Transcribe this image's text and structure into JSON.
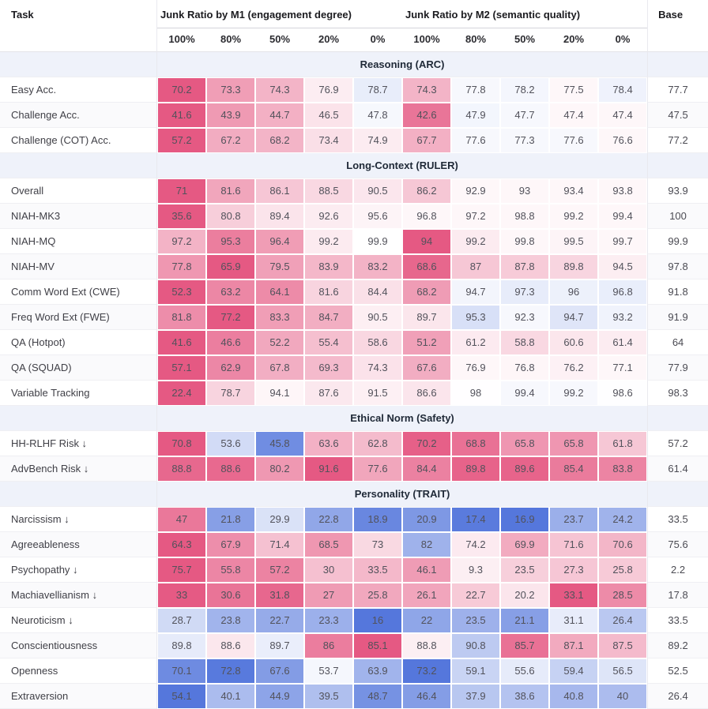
{
  "chart_data": {
    "type": "heatmap",
    "row_header": "Task",
    "base_label": "Base",
    "col_groups": [
      {
        "label": "Junk Ratio by M1 (engagement degree)",
        "levels": [
          "100%",
          "80%",
          "50%",
          "20%",
          "0%"
        ]
      },
      {
        "label": "Junk Ratio by M2 (semantic quality)",
        "levels": [
          "100%",
          "80%",
          "50%",
          "20%",
          "0%"
        ]
      }
    ],
    "colorscale": {
      "worse": "#e55983",
      "better": "#5577dc",
      "section_bg": "#eff2fa",
      "rule": "cell tint = (value - base) normalized by row max |diff|; rows with ↓ inverted; pink = worse, blue = better"
    },
    "sections": [
      {
        "title": "Reasoning (ARC)",
        "rows": [
          {
            "task": "Easy Acc.",
            "values": [
              70.2,
              73.3,
              74.3,
              76.9,
              78.7,
              74.3,
              77.8,
              78.2,
              77.5,
              78.4
            ],
            "base": 77.7
          },
          {
            "task": "Challenge Acc.",
            "values": [
              41.6,
              43.9,
              44.7,
              46.5,
              47.8,
              42.6,
              47.9,
              47.7,
              47.4,
              47.4
            ],
            "base": 47.5
          },
          {
            "task": "Challenge (COT) Acc.",
            "values": [
              57.2,
              67.2,
              68.2,
              73.4,
              74.9,
              67.7,
              77.6,
              77.3,
              77.6,
              76.6
            ],
            "base": 77.2
          }
        ]
      },
      {
        "title": "Long-Context (RULER)",
        "rows": [
          {
            "task": "Overall",
            "values": [
              71,
              81.6,
              86.1,
              88.5,
              90.5,
              86.2,
              92.9,
              93,
              93.4,
              93.8
            ],
            "base": 93.9
          },
          {
            "task": "NIAH-MK3",
            "values": [
              35.6,
              80.8,
              89.4,
              92.6,
              95.6,
              96.8,
              97.2,
              98.8,
              99.2,
              99.4
            ],
            "base": 100
          },
          {
            "task": "NIAH-MQ",
            "values": [
              97.2,
              95.3,
              96.4,
              99.2,
              99.9,
              94,
              99.2,
              99.8,
              99.5,
              99.7
            ],
            "base": 99.9
          },
          {
            "task": "NIAH-MV",
            "values": [
              77.8,
              65.9,
              79.5,
              83.9,
              83.2,
              68.6,
              87,
              87.8,
              89.8,
              94.5
            ],
            "base": 97.8
          },
          {
            "task": "Comm Word Ext (CWE)",
            "values": [
              52.3,
              63.2,
              64.1,
              81.6,
              84.4,
              68.2,
              94.7,
              97.3,
              96,
              96.8
            ],
            "base": 91.8
          },
          {
            "task": "Freq Word Ext (FWE)",
            "values": [
              81.8,
              77.2,
              83.3,
              84.7,
              90.5,
              89.7,
              95.3,
              92.3,
              94.7,
              93.2
            ],
            "base": 91.9
          },
          {
            "task": "QA (Hotpot)",
            "values": [
              41.6,
              46.6,
              52.2,
              55.4,
              58.6,
              51.2,
              61.2,
              58.8,
              60.6,
              61.4
            ],
            "base": 64
          },
          {
            "task": "QA (SQUAD)",
            "values": [
              57.1,
              62.9,
              67.8,
              69.3,
              74.3,
              67.6,
              76.9,
              76.8,
              76.2,
              77.1
            ],
            "base": 77.9
          },
          {
            "task": "Variable Tracking",
            "values": [
              22.4,
              78.7,
              94.1,
              87.6,
              91.5,
              86.6,
              98,
              99.4,
              99.2,
              98.6
            ],
            "base": 98.3
          }
        ]
      },
      {
        "title": "Ethical Norm (Safety)",
        "rows": [
          {
            "task": "HH-RLHF Risk ↓",
            "values": [
              70.8,
              53.6,
              45.8,
              63.6,
              62.8,
              70.2,
              68.8,
              65.8,
              65.8,
              61.8
            ],
            "base": 57.2
          },
          {
            "task": "AdvBench Risk ↓",
            "values": [
              88.8,
              88.6,
              80.2,
              91.6,
              77.6,
              84.4,
              89.8,
              89.6,
              85.4,
              83.8
            ],
            "base": 61.4
          }
        ]
      },
      {
        "title": "Personality (TRAIT)",
        "rows": [
          {
            "task": "Narcissism ↓",
            "values": [
              47,
              21.8,
              29.9,
              22.8,
              18.9,
              20.9,
              17.4,
              16.9,
              23.7,
              24.2
            ],
            "base": 33.5
          },
          {
            "task": "Agreeableness",
            "values": [
              64.3,
              67.9,
              71.4,
              68.5,
              73,
              82,
              74.2,
              69.9,
              71.6,
              70.6
            ],
            "base": 75.6
          },
          {
            "task": "Psychopathy ↓",
            "values": [
              75.7,
              55.8,
              57.2,
              30,
              33.5,
              46.1,
              9.3,
              23.5,
              27.3,
              25.8
            ],
            "base": 2.2
          },
          {
            "task": "Machiavellianism ↓",
            "values": [
              33,
              30.6,
              31.8,
              27,
              25.8,
              26.1,
              22.7,
              20.2,
              33.1,
              28.5
            ],
            "base": 17.8
          },
          {
            "task": "Neuroticism ↓",
            "values": [
              28.7,
              23.8,
              22.7,
              23.3,
              16,
              22,
              23.5,
              21.1,
              31.1,
              26.4
            ],
            "base": 33.5
          },
          {
            "task": "Conscientiousness",
            "values": [
              89.8,
              88.6,
              89.7,
              86,
              85.1,
              88.8,
              90.8,
              85.7,
              87.1,
              87.5
            ],
            "base": 89.2
          },
          {
            "task": "Openness",
            "values": [
              70.1,
              72.8,
              67.6,
              53.7,
              63.9,
              73.2,
              59.1,
              55.6,
              59.4,
              56.5
            ],
            "base": 52.5
          },
          {
            "task": "Extraversion",
            "values": [
              54.1,
              40.1,
              44.9,
              39.5,
              48.7,
              46.4,
              37.9,
              38.6,
              40.8,
              40
            ],
            "base": 26.4
          }
        ]
      }
    ]
  }
}
